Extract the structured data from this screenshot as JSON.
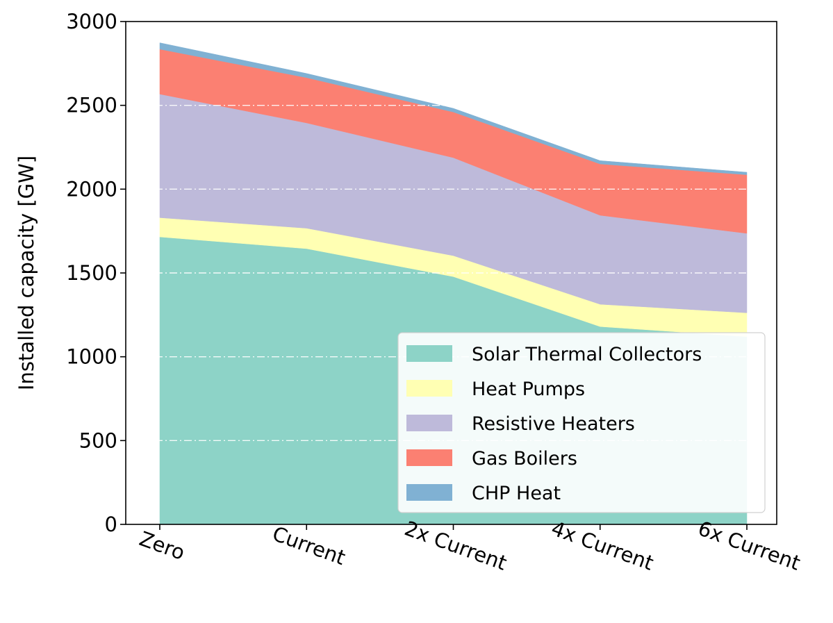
{
  "chart_data": {
    "type": "area",
    "stacked": true,
    "categories": [
      "Zero",
      "Current",
      "2x Current",
      "4x Current",
      "6x Current"
    ],
    "series": [
      {
        "name": "Solar Thermal Collectors",
        "color": "#8dd3c7",
        "values": [
          1715,
          1645,
          1478,
          1180,
          1120
        ]
      },
      {
        "name": "Heat Pumps",
        "color": "#ffffb3",
        "values": [
          115,
          122,
          125,
          133,
          142
        ]
      },
      {
        "name": "Resistive Heaters",
        "color": "#bebada",
        "values": [
          737,
          628,
          585,
          531,
          474
        ]
      },
      {
        "name": "Gas Boilers",
        "color": "#fb8072",
        "values": [
          268,
          270,
          272,
          306,
          350
        ]
      },
      {
        "name": "CHP Heat",
        "color": "#80b1d3",
        "values": [
          38,
          25,
          22,
          20,
          15
        ]
      }
    ],
    "xlabel": "",
    "ylabel": "Installed capacity [GW]",
    "ylim": [
      0,
      3000
    ],
    "yticks": [
      "0",
      "500",
      "1000",
      "1500",
      "2000",
      "2500",
      "3000"
    ],
    "grid": "horizontal dash-dot, white",
    "legend_position": "lower-right"
  }
}
